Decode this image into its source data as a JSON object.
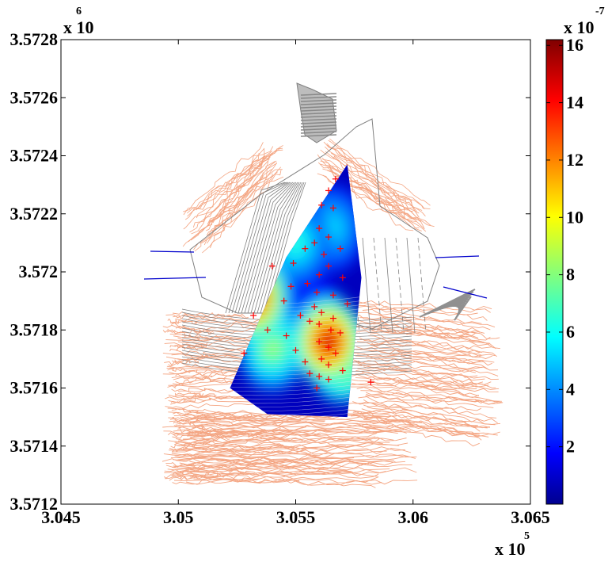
{
  "chart_data": {
    "type": "heatmap",
    "title": "",
    "xlabel": "",
    "ylabel": "",
    "x_ticks": [
      "3.045",
      "3.05",
      "3.055",
      "3.06",
      "3.065"
    ],
    "x_tick_values": [
      304500,
      305000,
      305500,
      306000,
      306500
    ],
    "x_multiplier_text": "x 10",
    "x_multiplier_exp": "5",
    "xlim": [
      304500,
      306500
    ],
    "y_ticks": [
      "3.5712",
      "3.5714",
      "3.5716",
      "3.5718",
      "3.572",
      "3.5722",
      "3.5724",
      "3.5726",
      "3.5728"
    ],
    "y_tick_values": [
      3571200,
      3571400,
      3571600,
      3571800,
      3572000,
      3572200,
      3572400,
      3572600,
      3572800
    ],
    "y_multiplier_text": "x 10",
    "y_multiplier_exp": "6",
    "ylim": [
      3571200,
      3572800
    ],
    "colorbar": {
      "colormap": "jet",
      "ticks": [
        "2",
        "4",
        "6",
        "8",
        "10",
        "12",
        "14",
        "16"
      ],
      "tick_values": [
        2,
        4,
        6,
        8,
        10,
        12,
        14,
        16
      ],
      "range": [
        0,
        16.2
      ],
      "multiplier_text": "x 10",
      "multiplier_exp": "-7"
    },
    "colors": {
      "terrain_contours": "#f4a582",
      "structure_lines": "#808080",
      "measurement_markers": "#ff0000",
      "field_lines": "#0000cc"
    },
    "interpolated_region": {
      "polygon": [
        [
          305220,
          3571600
        ],
        [
          305460,
          3572050
        ],
        [
          305720,
          3572370
        ],
        [
          305780,
          3571980
        ],
        [
          305720,
          3571500
        ],
        [
          305380,
          3571510
        ]
      ],
      "hotspots": [
        {
          "x": 305320,
          "y": 3571910,
          "value": 15
        },
        {
          "x": 305640,
          "y": 3571760,
          "value": 16
        },
        {
          "x": 305700,
          "y": 3571700,
          "value": 12
        },
        {
          "x": 305400,
          "y": 3571740,
          "value": 9
        },
        {
          "x": 305500,
          "y": 3572100,
          "value": 7
        },
        {
          "x": 305650,
          "y": 3572150,
          "value": 6
        },
        {
          "x": 305300,
          "y": 3571980,
          "value": 5
        },
        {
          "x": 305560,
          "y": 3571850,
          "value": 3
        }
      ],
      "background_value": 1
    },
    "measurement_points": [
      [
        305670,
        3572320
      ],
      [
        305640,
        3572280
      ],
      [
        305610,
        3572230
      ],
      [
        305660,
        3572220
      ],
      [
        305600,
        3572150
      ],
      [
        305640,
        3572120
      ],
      [
        305580,
        3572100
      ],
      [
        305690,
        3572080
      ],
      [
        305540,
        3572080
      ],
      [
        305620,
        3572060
      ],
      [
        305490,
        3572030
      ],
      [
        305640,
        3572020
      ],
      [
        305400,
        3572020
      ],
      [
        305600,
        3571990
      ],
      [
        305700,
        3571980
      ],
      [
        305550,
        3571960
      ],
      [
        305480,
        3571950
      ],
      [
        305590,
        3571930
      ],
      [
        305660,
        3571920
      ],
      [
        305450,
        3571900
      ],
      [
        305720,
        3571890
      ],
      [
        305580,
        3571880
      ],
      [
        305610,
        3571860
      ],
      [
        305520,
        3571850
      ],
      [
        305320,
        3571850
      ],
      [
        305660,
        3571840
      ],
      [
        305560,
        3571830
      ],
      [
        305600,
        3571820
      ],
      [
        305650,
        3571800
      ],
      [
        305380,
        3571800
      ],
      [
        305690,
        3571790
      ],
      [
        305460,
        3571780
      ],
      [
        305600,
        3571760
      ],
      [
        305640,
        3571740
      ],
      [
        305500,
        3571730
      ],
      [
        305670,
        3571720
      ],
      [
        305280,
        3571720
      ],
      [
        305610,
        3571700
      ],
      [
        305540,
        3571690
      ],
      [
        305640,
        3571680
      ],
      [
        305700,
        3571660
      ],
      [
        305560,
        3571650
      ],
      [
        305600,
        3571640
      ],
      [
        305640,
        3571630
      ],
      [
        305820,
        3571620
      ],
      [
        305590,
        3571600
      ]
    ]
  }
}
